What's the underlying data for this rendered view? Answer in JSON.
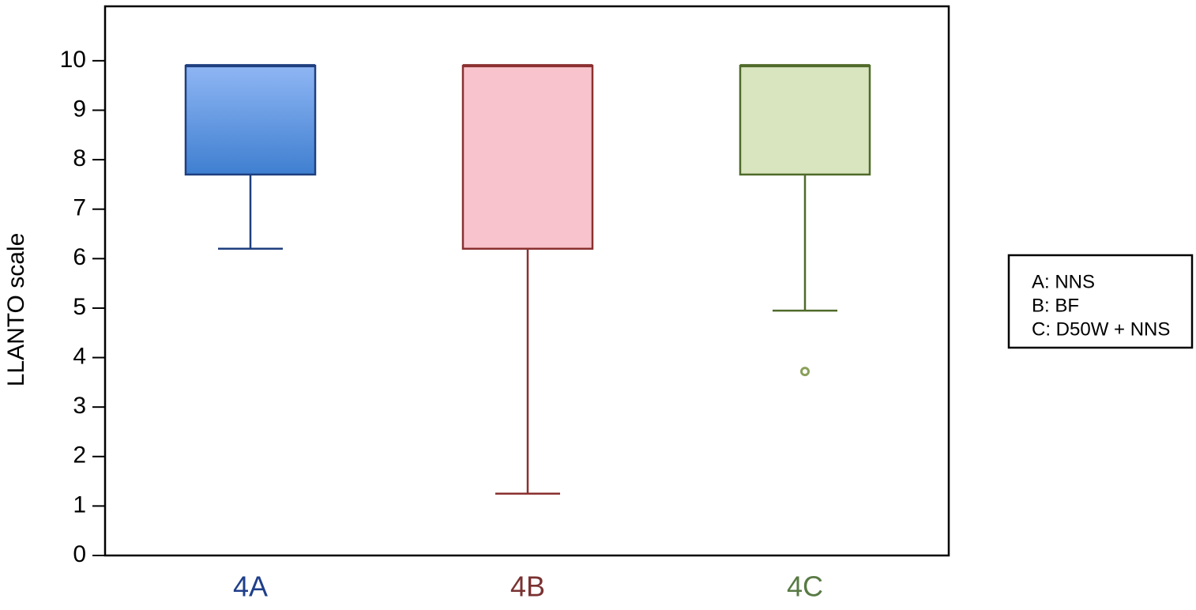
{
  "chart_data": {
    "type": "box",
    "y_label": "LLANTO scale",
    "categories": [
      "4A",
      "4B",
      "4C"
    ],
    "category_colors": [
      "#1f3f8a",
      "#7a3232",
      "#587a44"
    ],
    "boxes": [
      {
        "min": 6.2,
        "q1": 7.7,
        "median": 9.9,
        "q3": 9.9,
        "max": 9.9,
        "outliers": [],
        "fill": "#6d9fe6",
        "stroke": "#1f3f7f"
      },
      {
        "min": 1.25,
        "q1": 6.2,
        "median": 9.9,
        "q3": 9.9,
        "max": 9.9,
        "outliers": [],
        "fill": "#f8c3cc",
        "stroke": "#8b3030"
      },
      {
        "min": 4.95,
        "q1": 7.7,
        "median": 9.9,
        "q3": 9.9,
        "max": 9.9,
        "outliers": [
          3.72
        ],
        "fill": "#d8e5bf",
        "stroke": "#4f6a2a"
      }
    ],
    "ylim": [
      0,
      11.1
    ],
    "yticks": [
      0,
      1,
      2,
      3,
      4,
      5,
      6,
      7,
      8,
      9,
      10
    ],
    "grid": false,
    "legend": [
      "A: NNS",
      "B: BF",
      "C: D50W + NNS"
    ]
  }
}
